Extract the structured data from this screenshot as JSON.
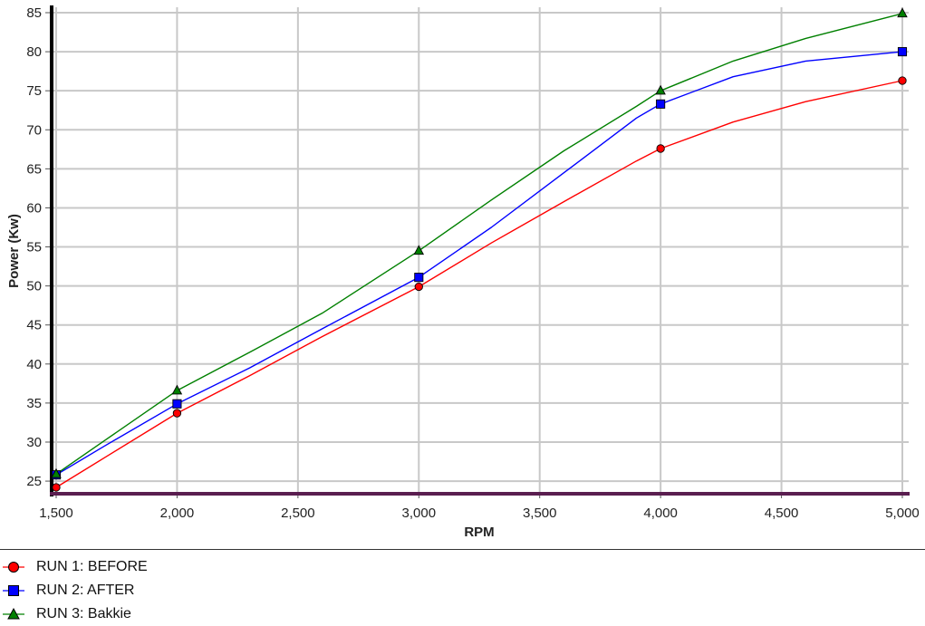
{
  "chart_data": {
    "type": "line",
    "title": "",
    "xlabel": "RPM",
    "ylabel": "Power (Kw)",
    "xlim": [
      1500,
      5000
    ],
    "ylim": [
      23.5,
      85
    ],
    "x_ticks": [
      1500,
      2000,
      2500,
      3000,
      3500,
      4000,
      4500,
      5000
    ],
    "x_tick_labels": [
      "1,500",
      "2,000",
      "2,500",
      "3,000",
      "3,500",
      "4,000",
      "4,500",
      "5,000"
    ],
    "y_ticks": [
      25,
      30,
      35,
      40,
      45,
      50,
      55,
      60,
      65,
      70,
      75,
      80,
      85
    ],
    "y_tick_labels": [
      "25",
      "30",
      "35",
      "40",
      "45",
      "50",
      "55",
      "60",
      "65",
      "70",
      "75",
      "80",
      "85"
    ],
    "grid": true,
    "legend_position": "bottom-left",
    "series": [
      {
        "name": "RUN 1: BEFORE",
        "color": "#ff0000",
        "marker": "circle",
        "x": [
          1500,
          1700,
          2000,
          2300,
          2600,
          3000,
          3300,
          3600,
          3900,
          4000,
          4300,
          4600,
          5000
        ],
        "y": [
          24.2,
          28.0,
          33.7,
          38.5,
          43.5,
          49.9,
          55.5,
          60.8,
          66.0,
          67.6,
          71.0,
          73.6,
          76.3
        ],
        "marker_x": [
          1500,
          2000,
          3000,
          4000,
          5000
        ],
        "marker_y": [
          24.2,
          33.7,
          49.9,
          67.6,
          76.3
        ]
      },
      {
        "name": "RUN 2: AFTER",
        "color": "#0000ff",
        "marker": "square",
        "x": [
          1500,
          1700,
          2000,
          2300,
          2600,
          3000,
          3300,
          3600,
          3900,
          4000,
          4300,
          4600,
          5000
        ],
        "y": [
          25.8,
          29.5,
          34.9,
          39.5,
          44.5,
          51.1,
          57.5,
          64.5,
          71.5,
          73.3,
          76.8,
          78.8,
          80.0
        ],
        "marker_x": [
          1500,
          2000,
          3000,
          4000,
          5000
        ],
        "marker_y": [
          25.8,
          34.9,
          51.1,
          73.3,
          80.0
        ]
      },
      {
        "name": "RUN 3: Bakkie",
        "color": "#008000",
        "marker": "triangle",
        "x": [
          1500,
          1700,
          2000,
          2300,
          2600,
          3000,
          3300,
          3600,
          3900,
          4000,
          4300,
          4600,
          5000
        ],
        "y": [
          25.9,
          30.2,
          36.6,
          41.5,
          46.5,
          54.5,
          61.0,
          67.3,
          73.0,
          75.0,
          78.8,
          81.7,
          84.9
        ],
        "marker_x": [
          1500,
          2000,
          3000,
          4000,
          5000
        ],
        "marker_y": [
          25.9,
          36.6,
          54.5,
          75.0,
          84.9
        ]
      }
    ]
  },
  "legend": {
    "items": [
      {
        "label": "RUN 1: BEFORE",
        "color": "#ff0000",
        "marker": "circle"
      },
      {
        "label": "RUN 2: AFTER",
        "color": "#0000ff",
        "marker": "square"
      },
      {
        "label": "RUN 3: Bakkie",
        "color": "#008000",
        "marker": "triangle"
      }
    ]
  },
  "colors": {
    "grid": "#c8c8c8",
    "y_axis_bar": "#000000",
    "x_axis_bar": "#5a1e50",
    "separator": "#333333"
  }
}
